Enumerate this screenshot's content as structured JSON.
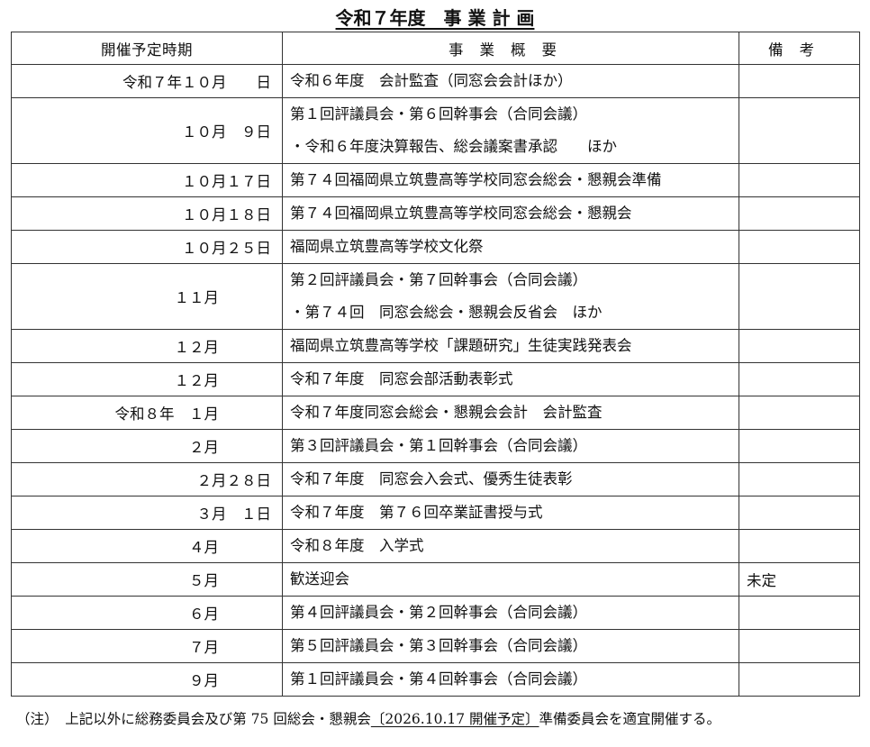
{
  "title": "令和７年度　事 業 計 画",
  "headers": [
    "開催予定時期",
    "事業概要",
    "備考"
  ],
  "rows": [
    {
      "date": "令和７年１０月　　日",
      "lines": [
        "令和６年度　会計監査（同窓会会計ほか）"
      ],
      "note": ""
    },
    {
      "date": "１０月　９日",
      "lines": [
        "第１回評議員会・第６回幹事会（合同会議）",
        "・令和６年度決算報告、総会議案書承認　　ほか"
      ],
      "note": ""
    },
    {
      "date": "１０月１７日",
      "lines": [
        "第７４回福岡県立筑豊高等学校同窓会総会・懇親会準備"
      ],
      "note": ""
    },
    {
      "date": "１０月１８日",
      "lines": [
        "第７４回福岡県立筑豊高等学校同窓会総会・懇親会"
      ],
      "note": ""
    },
    {
      "date": "１０月２５日",
      "lines": [
        "福岡県立筑豊高等学校文化祭"
      ],
      "note": ""
    },
    {
      "date": "１１月",
      "lines": [
        "第２回評議員会・第７回幹事会（合同会議）",
        "・第７４回　同窓会総会・懇親会反省会　ほか"
      ],
      "note": ""
    },
    {
      "date": "１２月",
      "lines": [
        "福岡県立筑豊高等学校「課題研究」生徒実践発表会"
      ],
      "note": ""
    },
    {
      "date": "１２月",
      "lines": [
        "令和７年度　同窓会部活動表彰式"
      ],
      "note": ""
    },
    {
      "date": "令和８年　１月",
      "lines": [
        "令和７年度同窓会総会・懇親会会計　会計監査"
      ],
      "note": ""
    },
    {
      "date": "２月",
      "lines": [
        "第３回評議員会・第１回幹事会（合同会議）"
      ],
      "note": ""
    },
    {
      "date": "２月２８日",
      "lines": [
        "令和７年度　同窓会入会式、優秀生徒表彰"
      ],
      "note": ""
    },
    {
      "date": "３月　１日",
      "lines": [
        "令和７年度　第７６回卒業証書授与式"
      ],
      "note": ""
    },
    {
      "date": "４月",
      "lines": [
        "令和８年度　入学式"
      ],
      "note": ""
    },
    {
      "date": "５月",
      "lines": [
        "歓送迎会"
      ],
      "note": "未定"
    },
    {
      "date": "６月",
      "lines": [
        "第４回評議員会・第２回幹事会（合同会議）"
      ],
      "note": ""
    },
    {
      "date": "７月",
      "lines": [
        "第５回評議員会・第３回幹事会（合同会議）"
      ],
      "note": ""
    },
    {
      "date": "９月",
      "lines": [
        "第１回評議員会・第４回幹事会（合同会議）"
      ],
      "note": ""
    }
  ],
  "footnote": {
    "prefix": "（注）　上記以外に総務委員会及び第 75 回総会・懇親会",
    "underlined": "〔2026.10.17 開催予定〕",
    "suffix": "準備委員会を適宜開催する。"
  }
}
